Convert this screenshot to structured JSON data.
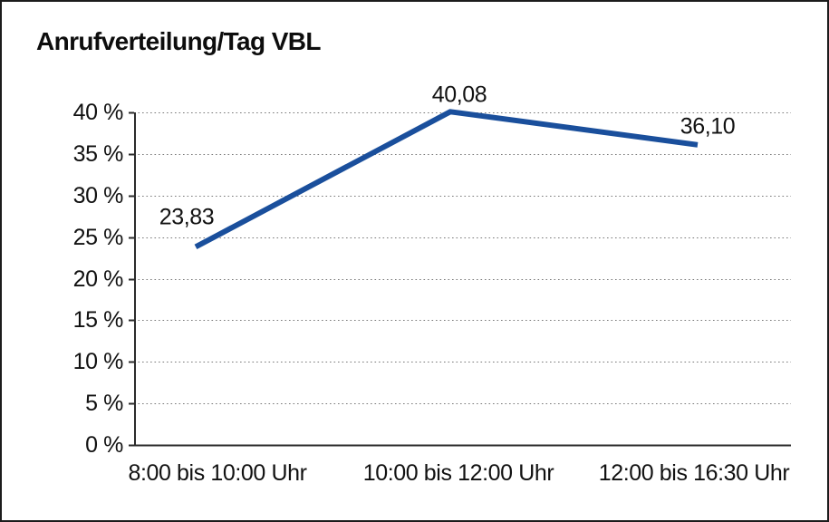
{
  "chart_data": {
    "type": "line",
    "title": "Anrufverteilung/Tag VBL",
    "categories": [
      "8:00 bis 10:00 Uhr",
      "10:00 bis 12:00 Uhr",
      "12:00 bis 16:30 Uhr"
    ],
    "values": [
      23.83,
      40.08,
      36.1
    ],
    "point_labels": [
      "23,83",
      "40,08",
      "36,10"
    ],
    "y_tick_labels": [
      "0 %",
      "5 %",
      "10 %",
      "15 %",
      "20 %",
      "25 %",
      "30 %",
      "35 %",
      "40 %"
    ],
    "ylim": [
      0,
      40
    ],
    "y_tick_step": 5,
    "xlabel": "",
    "ylabel": "",
    "grid": "horizontal-dotted",
    "legend": "none",
    "line_color": "#1a4f9c",
    "axis_color": "#2b2b2b",
    "grid_color": "#7a7a7a",
    "text_color": "#111111"
  }
}
